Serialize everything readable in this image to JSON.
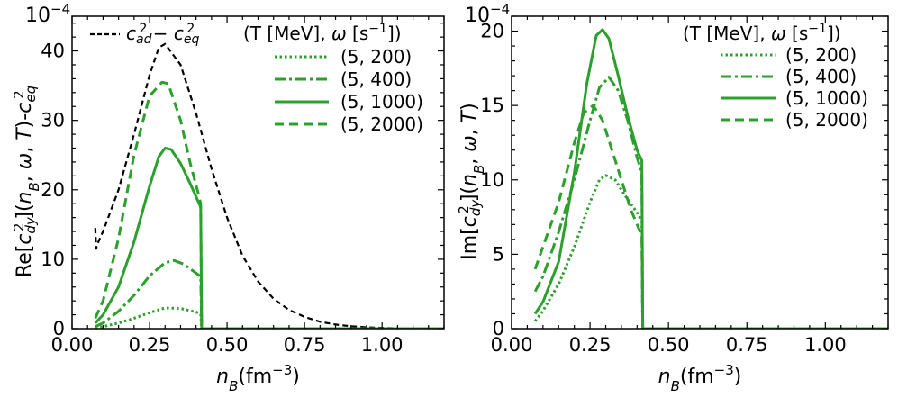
{
  "figure": {
    "colors": {
      "green": "#2ca02c",
      "black": "#000000"
    }
  },
  "chart_data": [
    {
      "type": "line",
      "panel": "left",
      "xlabel": "n_B(fm^-3)",
      "ylabel": "Re[c_dy^2](n_B, ω, T)-c_eq^2",
      "xlim": [
        0.0,
        1.2
      ],
      "ylim": [
        0,
        45
      ],
      "y_scale_label": "10^-4",
      "xticks": [
        "0.00",
        "0.25",
        "0.50",
        "0.75",
        "1.00"
      ],
      "xtick_values": [
        0.0,
        0.25,
        0.5,
        0.75,
        1.0
      ],
      "yticks": [
        "0",
        "10",
        "20",
        "30",
        "40"
      ],
      "ytick_values": [
        0,
        10,
        20,
        30,
        40
      ],
      "legend_title": "(T [MeV], ω [s^-1])",
      "series": [
        {
          "name": "c_ad^2 − c_eq^2",
          "color": "#000000",
          "dash": "6,4",
          "width": 2.2,
          "legend_position": "upper-left",
          "x": [
            0.075,
            0.078,
            0.08,
            0.1,
            0.15,
            0.2,
            0.25,
            0.28,
            0.3,
            0.35,
            0.4,
            0.45,
            0.5,
            0.55,
            0.6,
            0.65,
            0.7,
            0.75,
            0.8,
            0.85,
            0.9,
            0.95,
            1.0,
            1.05,
            1.1,
            1.2
          ],
          "y": [
            14.5,
            11.5,
            12.0,
            14.0,
            20.0,
            28.0,
            36.5,
            40.5,
            41.0,
            38.0,
            31.0,
            23.0,
            16.0,
            10.5,
            6.8,
            4.3,
            2.7,
            1.7,
            1.0,
            0.6,
            0.35,
            0.2,
            0.1,
            0.05,
            0.02,
            0.0
          ]
        },
        {
          "name": "(5, 200)",
          "color": "#2ca02c",
          "dash": "2.5,3",
          "width": 3,
          "x": [
            0.075,
            0.1,
            0.15,
            0.2,
            0.25,
            0.3,
            0.35,
            0.4,
            0.415,
            0.418,
            0.5,
            0.75,
            1.0,
            1.2
          ],
          "y": [
            0.1,
            0.3,
            0.8,
            1.5,
            2.3,
            3.0,
            2.9,
            2.4,
            2.1,
            0.0,
            0.0,
            0.0,
            0.0,
            0.0
          ]
        },
        {
          "name": "(5, 400)",
          "color": "#2ca02c",
          "dash": "12,4,3,4",
          "width": 3,
          "x": [
            0.075,
            0.1,
            0.15,
            0.2,
            0.25,
            0.3,
            0.33,
            0.36,
            0.4,
            0.415,
            0.418,
            0.5,
            0.75,
            1.0,
            1.2
          ],
          "y": [
            0.3,
            0.8,
            2.5,
            4.8,
            7.6,
            9.5,
            9.8,
            9.3,
            8.0,
            7.5,
            0.0,
            0.0,
            0.0,
            0.0,
            0.0
          ]
        },
        {
          "name": "(5, 1000)",
          "color": "#2ca02c",
          "dash": "",
          "width": 3,
          "x": [
            0.075,
            0.1,
            0.15,
            0.2,
            0.25,
            0.28,
            0.3,
            0.32,
            0.35,
            0.38,
            0.41,
            0.415,
            0.418,
            0.5,
            0.75,
            1.0,
            1.2
          ],
          "y": [
            0.8,
            2.0,
            6.0,
            12.5,
            20.5,
            24.8,
            26.0,
            25.8,
            23.8,
            21.0,
            18.0,
            17.5,
            0.0,
            0.0,
            0.0,
            0.0,
            0.0
          ]
        },
        {
          "name": "(5, 2000)",
          "color": "#2ca02c",
          "dash": "10,6",
          "width": 3,
          "x": [
            0.075,
            0.1,
            0.15,
            0.2,
            0.25,
            0.29,
            0.31,
            0.35,
            0.38,
            0.41,
            0.415,
            0.418,
            0.5,
            0.75,
            1.0,
            1.2
          ],
          "y": [
            1.5,
            4.0,
            13.0,
            25.0,
            33.5,
            35.5,
            35.3,
            30.0,
            24.0,
            19.0,
            18.0,
            0.0,
            0.0,
            0.0,
            0.0,
            0.0
          ]
        }
      ]
    },
    {
      "type": "line",
      "panel": "right",
      "xlabel": "n_B(fm^-3)",
      "ylabel": "Im[c_dy^2](n_B, ω, T)",
      "xlim": [
        0.0,
        1.2
      ],
      "ylim": [
        0,
        21
      ],
      "y_scale_label": "10^-4",
      "xticks": [
        "0.00",
        "0.25",
        "0.50",
        "0.75",
        "1.00"
      ],
      "xtick_values": [
        0.0,
        0.25,
        0.5,
        0.75,
        1.0
      ],
      "yticks": [
        "0",
        "5",
        "10",
        "15",
        "20"
      ],
      "ytick_values": [
        0,
        5,
        10,
        15,
        20
      ],
      "legend_title": "(T [MeV], ω [s^-1])",
      "series": [
        {
          "name": "(5, 200)",
          "color": "#2ca02c",
          "dash": "2.5,3",
          "width": 3,
          "x": [
            0.075,
            0.1,
            0.15,
            0.2,
            0.25,
            0.28,
            0.3,
            0.33,
            0.36,
            0.4,
            0.415,
            0.418,
            0.5,
            0.75,
            1.0,
            1.2
          ],
          "y": [
            0.5,
            1.2,
            3.0,
            5.5,
            8.5,
            10.0,
            10.3,
            10.0,
            9.0,
            7.8,
            7.2,
            0.0,
            0.0,
            0.0,
            0.0,
            0.0
          ]
        },
        {
          "name": "(5, 400)",
          "color": "#2ca02c",
          "dash": "12,4,3,4",
          "width": 3,
          "x": [
            0.075,
            0.1,
            0.15,
            0.2,
            0.25,
            0.28,
            0.31,
            0.34,
            0.37,
            0.4,
            0.415,
            0.418,
            0.5,
            0.75,
            1.0,
            1.2
          ],
          "y": [
            2.5,
            3.5,
            6.5,
            10.0,
            14.0,
            16.2,
            16.9,
            16.0,
            14.0,
            11.5,
            10.5,
            0.0,
            0.0,
            0.0,
            0.0,
            0.0
          ]
        },
        {
          "name": "(5, 1000)",
          "color": "#2ca02c",
          "dash": "",
          "width": 3,
          "x": [
            0.075,
            0.1,
            0.15,
            0.2,
            0.24,
            0.27,
            0.29,
            0.31,
            0.34,
            0.37,
            0.4,
            0.415,
            0.418,
            0.5,
            0.75,
            1.0,
            1.2
          ],
          "y": [
            1.0,
            1.8,
            4.5,
            10.5,
            16.5,
            19.7,
            20.1,
            19.5,
            17.0,
            14.3,
            12.0,
            11.3,
            0.0,
            0.0,
            0.0,
            0.0,
            0.0
          ]
        },
        {
          "name": "(5, 2000)",
          "color": "#2ca02c",
          "dash": "10,6",
          "width": 3,
          "x": [
            0.075,
            0.1,
            0.15,
            0.2,
            0.23,
            0.26,
            0.29,
            0.32,
            0.35,
            0.38,
            0.41,
            0.415,
            0.418,
            0.5,
            0.75,
            1.0,
            1.2
          ],
          "y": [
            4.0,
            5.5,
            8.5,
            12.5,
            14.5,
            15.0,
            14.0,
            12.0,
            10.0,
            8.0,
            6.5,
            6.3,
            0.0,
            0.0,
            0.0,
            0.0,
            0.0
          ]
        }
      ]
    }
  ]
}
